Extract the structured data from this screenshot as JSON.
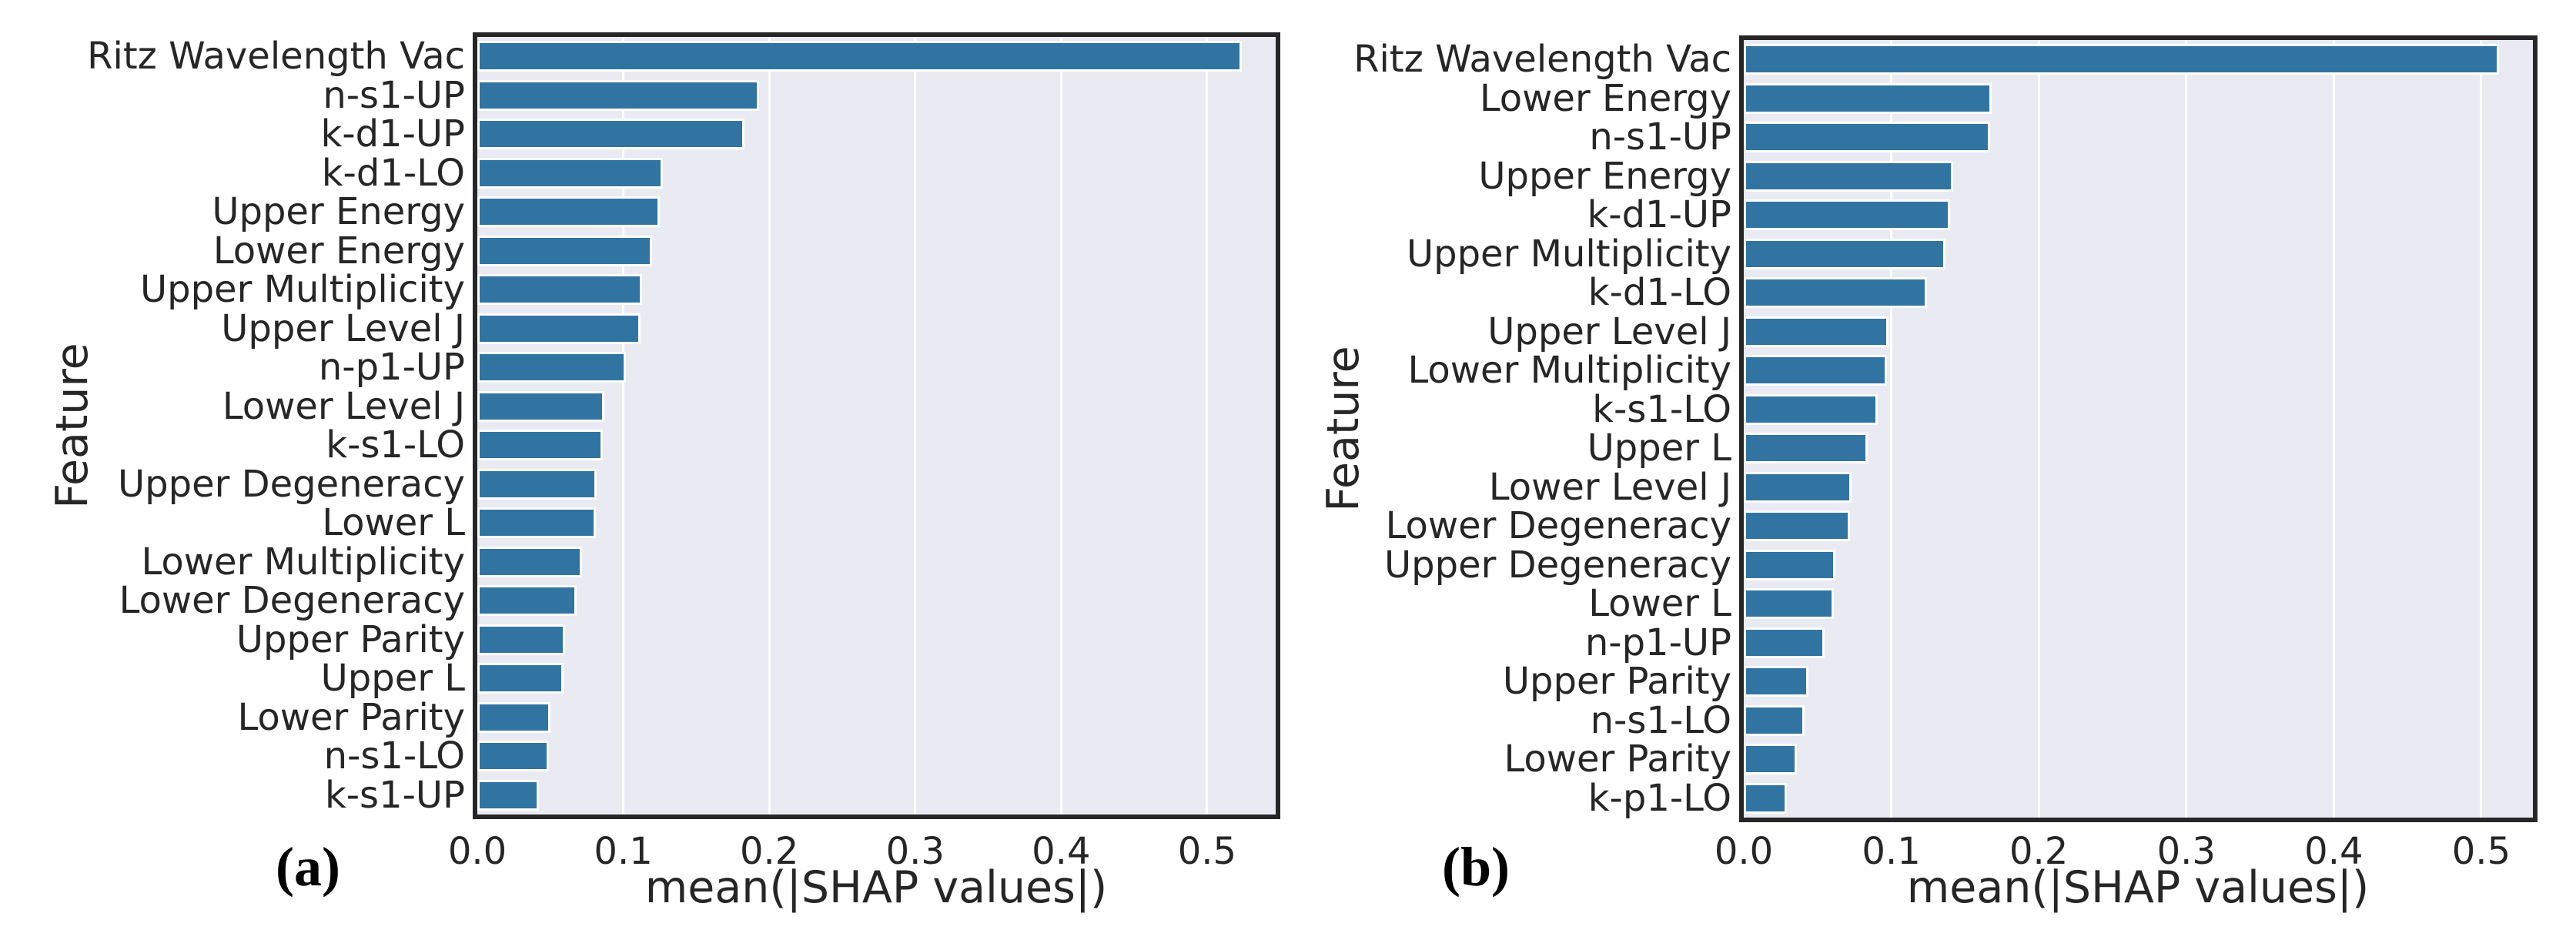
{
  "figure": {
    "colors": {
      "bar": "#3274a1",
      "plot_background": "#eaeaf2",
      "gridline": "#ffffff",
      "spine": "#262626",
      "text": "#262626",
      "caption": "#000000",
      "figure_background": "#ffffff"
    }
  },
  "chart_data": [
    {
      "type": "bar",
      "orientation": "horizontal",
      "caption": "(a)",
      "xlabel": "mean(|SHAP values|)",
      "ylabel": "Feature",
      "xlim": [
        0,
        0.547
      ],
      "grid": true,
      "x_tick_labels": [
        "0.0",
        "0.1",
        "0.2",
        "0.3",
        "0.4",
        "0.5"
      ],
      "categories": [
        "Ritz Wavelength Vac",
        "n-s1-UP",
        "k-d1-UP",
        "k-d1-LO",
        "Upper Energy",
        "Lower Energy",
        "Upper Multiplicity",
        "Upper Level J",
        "n-p1-UP",
        "Lower Level J",
        "k-s1-LO",
        "Upper Degeneracy",
        "Lower L",
        "Lower Multiplicity",
        "Lower Degeneracy",
        "Upper Parity",
        "Upper L",
        "Lower Parity",
        "n-s1-LO",
        "k-s1-UP"
      ],
      "values": [
        0.524,
        0.193,
        0.183,
        0.127,
        0.125,
        0.12,
        0.113,
        0.112,
        0.102,
        0.087,
        0.086,
        0.082,
        0.081,
        0.072,
        0.068,
        0.06,
        0.059,
        0.05,
        0.049,
        0.042
      ]
    },
    {
      "type": "bar",
      "orientation": "horizontal",
      "caption": "(b)",
      "xlabel": "mean(|SHAP values|)",
      "ylabel": "Feature",
      "xlim": [
        0,
        0.535
      ],
      "grid": true,
      "x_tick_labels": [
        "0.0",
        "0.1",
        "0.2",
        "0.3",
        "0.4",
        "0.5"
      ],
      "categories": [
        "Ritz Wavelength Vac",
        "Lower Energy",
        "n-s1-UP",
        "Upper Energy",
        "k-d1-UP",
        "Upper Multiplicity",
        "k-d1-LO",
        "Upper Level J",
        "Lower Multiplicity",
        "k-s1-LO",
        "Upper L",
        "Lower Level J",
        "Lower Degeneracy",
        "Upper Degeneracy",
        "Lower L",
        "n-p1-UP",
        "Upper Parity",
        "n-s1-LO",
        "Lower Parity",
        "k-p1-LO"
      ],
      "values": [
        0.512,
        0.168,
        0.167,
        0.142,
        0.14,
        0.137,
        0.124,
        0.098,
        0.097,
        0.091,
        0.084,
        0.073,
        0.072,
        0.062,
        0.061,
        0.055,
        0.044,
        0.041,
        0.036,
        0.029
      ]
    }
  ]
}
